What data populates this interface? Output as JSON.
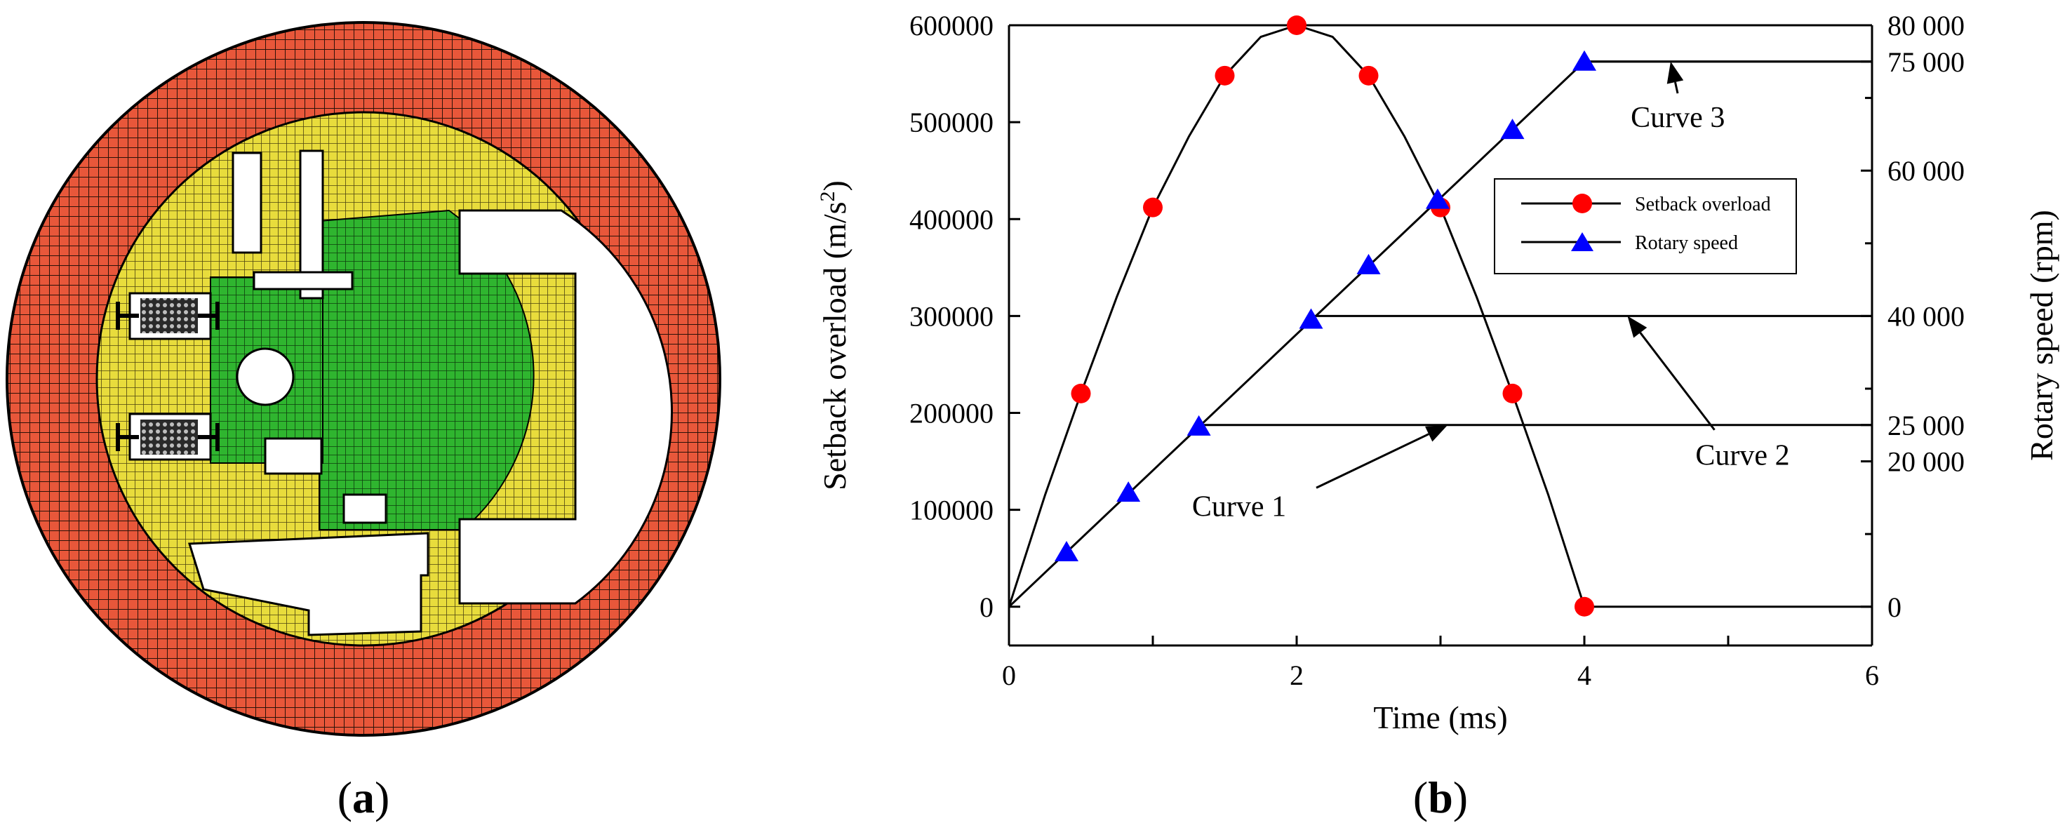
{
  "figure": {
    "panel_a_label": "a",
    "panel_b_label": "b",
    "panel_a_description": "finite element mesh model",
    "mesh_colors": {
      "outer_ring": "#e8573a",
      "inner_body": "#e8dc3c",
      "rotor": "#2fb52f",
      "springs": "#1a1a1a",
      "background": "#ffffff"
    }
  },
  "chart_data": {
    "type": "line",
    "xlabel": "Time (ms)",
    "ylabel_left_main": "Setback overload (m/s",
    "ylabel_left_sup": "2",
    "ylabel_left_close": ")",
    "ylabel_right": "Rotary speed (rpm)",
    "xlim": [
      0,
      6
    ],
    "ylim_left": [
      -40000,
      600000
    ],
    "ylim_right": [
      -5333,
      80000
    ],
    "x_ticks": [
      0,
      2,
      4,
      6
    ],
    "x_tick_labels": [
      "0",
      "2",
      "4",
      "6"
    ],
    "y_left_ticks": [
      0,
      100000,
      200000,
      300000,
      400000,
      500000,
      600000
    ],
    "y_left_tick_labels": [
      "0",
      "100000",
      "200000",
      "300000",
      "400000",
      "500000",
      "600000"
    ],
    "y_right_ticks": [
      0,
      20000,
      25000,
      40000,
      60000,
      75000,
      80000
    ],
    "y_right_tick_labels": [
      "0",
      "20 000",
      "25 000",
      "40 000",
      "60 000",
      "75 000",
      "80 000"
    ],
    "series": [
      {
        "name": "Setback overload",
        "axis": "left",
        "color": "#ff0000",
        "marker": "circle",
        "curve_x": [
          0,
          0.25,
          0.5,
          0.75,
          1,
          1.25,
          1.5,
          1.75,
          2,
          2.25,
          2.5,
          2.75,
          3,
          3.25,
          3.5,
          3.75,
          4,
          6
        ],
        "curve_y": [
          0,
          115000,
          220000,
          320000,
          412000,
          485000,
          548000,
          588000,
          600000,
          588000,
          548000,
          485000,
          412000,
          320000,
          220000,
          115000,
          0,
          0
        ],
        "marker_x": [
          0.5,
          1,
          1.5,
          2,
          2.5,
          3,
          3.5,
          4
        ],
        "marker_y": [
          220000,
          412000,
          548000,
          600000,
          548000,
          412000,
          220000,
          0
        ]
      },
      {
        "name": "Rotary speed",
        "axis": "right",
        "color": "#0000ff",
        "marker": "triangle",
        "curve_x": [
          0,
          4,
          6
        ],
        "curve_y": [
          0,
          75000,
          75000
        ],
        "marker_x": [
          0.4,
          0.83,
          1.32,
          2.1,
          2.5,
          2.98,
          3.5,
          4
        ],
        "marker_y": [
          7500,
          15700,
          24800,
          39500,
          47000,
          56000,
          65600,
          75000
        ]
      }
    ],
    "reference_lines": [
      {
        "name": "Curve 1",
        "axis": "right",
        "y": 25000,
        "x_start": 1.33,
        "x_end": 6
      },
      {
        "name": "Curve 2",
        "axis": "right",
        "y": 40000,
        "x_start": 2.1,
        "x_end": 6
      },
      {
        "name": "Curve 3",
        "axis": "right",
        "y": 75000,
        "x_start": 4,
        "x_end": 6
      }
    ],
    "annotations": [
      {
        "text": "Curve 1",
        "x": 1.6,
        "y_right": 12500,
        "arrow_to_x": 3.05,
        "arrow_to_y_right": 25000
      },
      {
        "text": "Curve 2",
        "x": 5.1,
        "y_right": 19500,
        "arrow_to_x": 4.3,
        "arrow_to_y_right": 40000
      },
      {
        "text": "Curve 3",
        "x": 4.65,
        "y_right": 66000,
        "arrow_to_x": 4.6,
        "arrow_to_y_right": 75000
      }
    ],
    "legend": {
      "position": "upper-right-inside",
      "entries": [
        "Setback overload",
        "Rotary speed"
      ]
    }
  }
}
